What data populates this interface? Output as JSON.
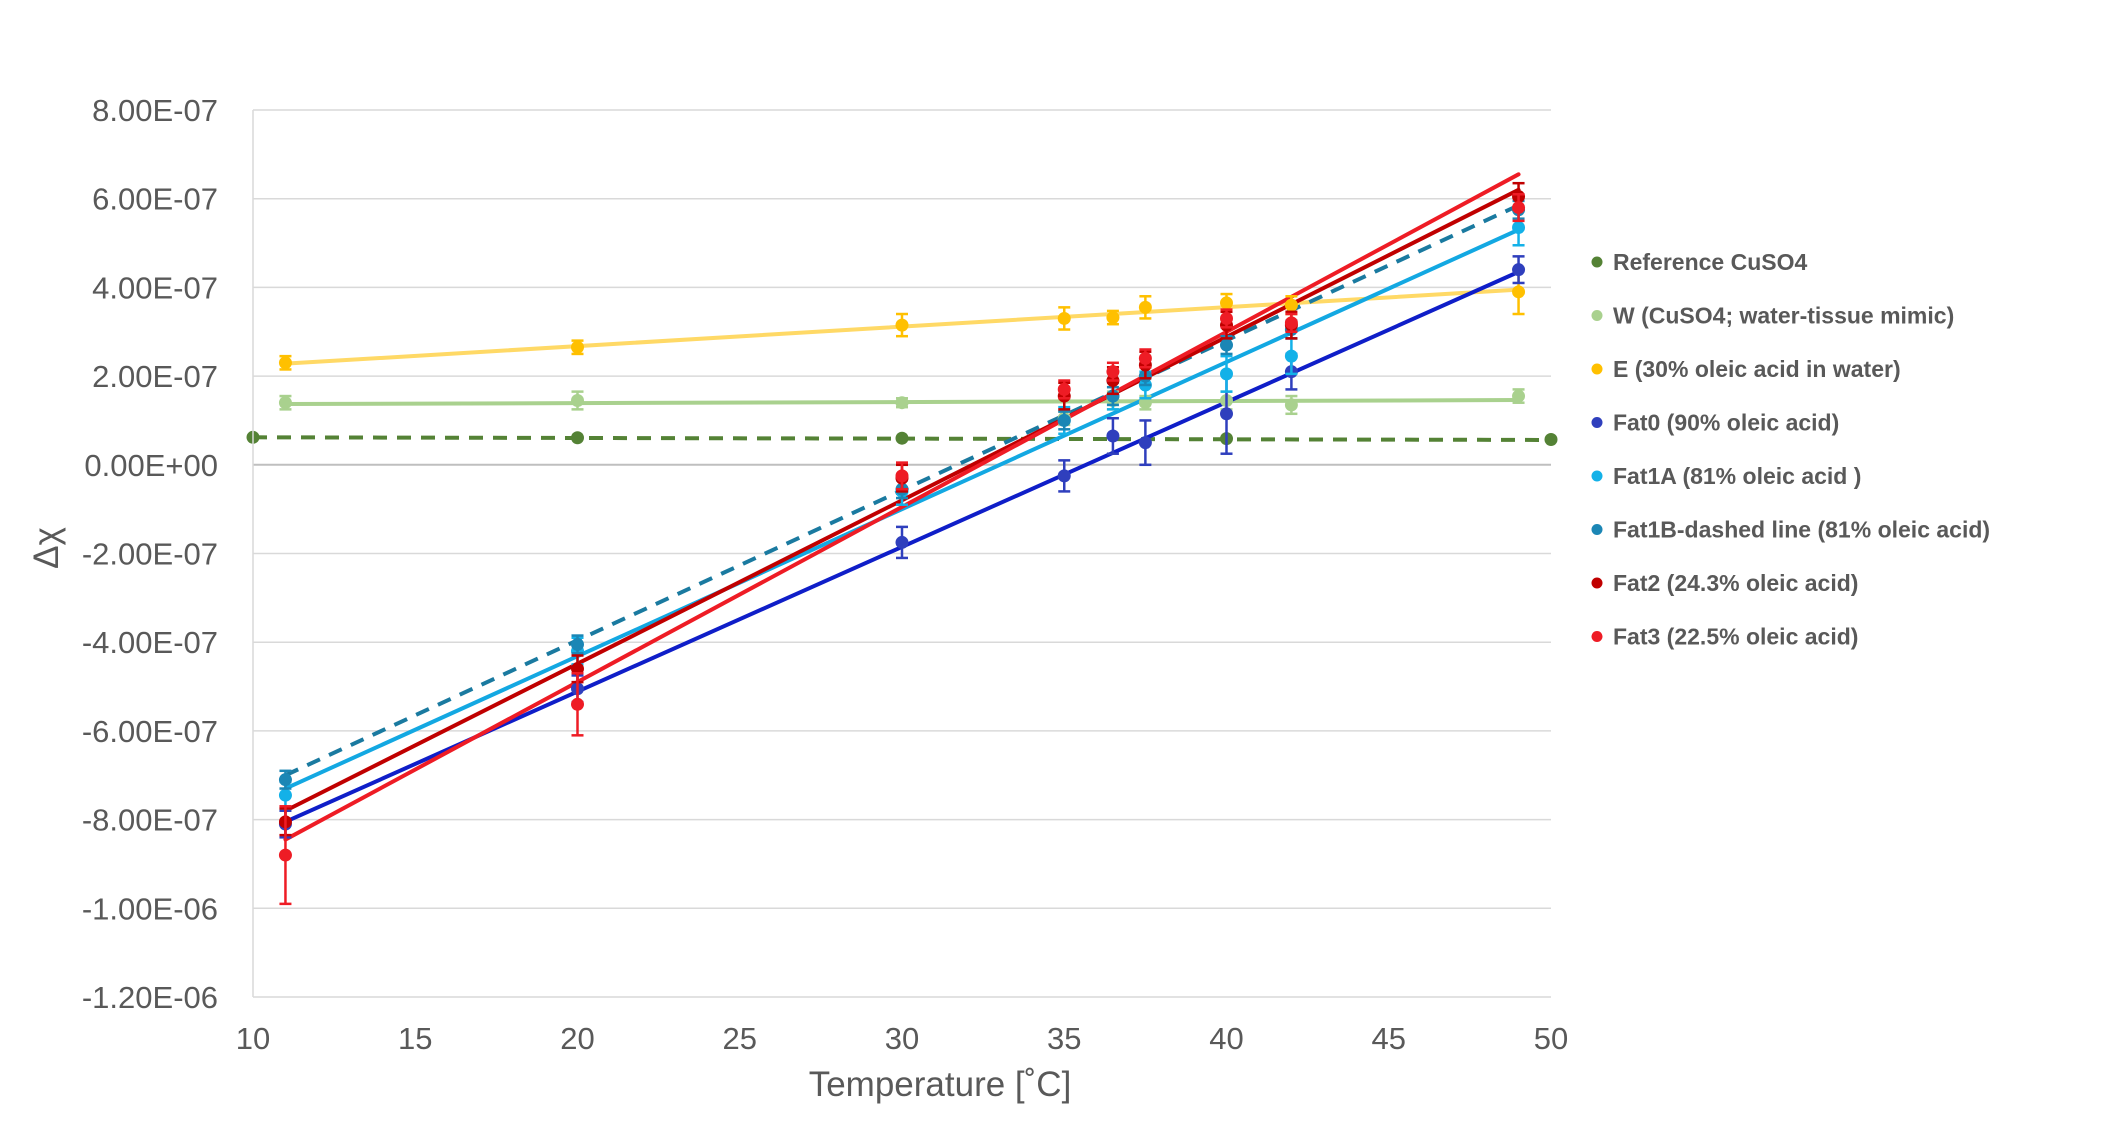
{
  "chart_data": {
    "type": "scatter",
    "title": "",
    "xlabel": "Temperature  [˚C]",
    "ylabel": "Δχ",
    "xlim": [
      10,
      50
    ],
    "ylim": [
      -1.2e-06,
      8e-07
    ],
    "x_ticks": [
      "10",
      "15",
      "20",
      "25",
      "30",
      "35",
      "40",
      "45",
      "50"
    ],
    "y_ticks": [
      "8.00E-07",
      "6.00E-07",
      "4.00E-07",
      "2.00E-07",
      "0.00E+00",
      "-2.00E-07",
      "-4.00E-07",
      "-6.00E-07",
      "-8.00E-07",
      "-1.00E-06",
      "-1.20E-06"
    ],
    "grid": "horizontal",
    "legend_position": "right",
    "series": [
      {
        "name": "Reference CuSO4",
        "color": "#548235",
        "marker_color": "#548235",
        "line_style": "dashed",
        "trendline": [
          [
            10,
            6.2e-08
          ],
          [
            50,
            5.6e-08
          ]
        ],
        "points": [
          [
            10,
            6.2e-08,
            0
          ],
          [
            20,
            6.1e-08,
            0
          ],
          [
            30,
            6e-08,
            0
          ],
          [
            40,
            5.9e-08,
            0
          ],
          [
            50,
            5.7e-08,
            0
          ]
        ]
      },
      {
        "name": "W (CuSO4; water-tissue mimic)",
        "color": "#a9d18e",
        "marker_color": "#a9d18e",
        "line_style": "solid",
        "trendline": [
          [
            11,
            1.37e-07
          ],
          [
            49,
            1.46e-07
          ]
        ],
        "points": [
          [
            11,
            1.4e-07,
            1.5e-08
          ],
          [
            20,
            1.45e-07,
            2e-08
          ],
          [
            30,
            1.4e-07,
            1e-08
          ],
          [
            35,
            1.05e-07,
            1.5e-08
          ],
          [
            36.5,
            1.45e-07,
            2e-08
          ],
          [
            37.5,
            1.4e-07,
            1.5e-08
          ],
          [
            40,
            1.45e-07,
            2e-08
          ],
          [
            42,
            1.35e-07,
            2e-08
          ],
          [
            49,
            1.55e-07,
            1.5e-08
          ]
        ]
      },
      {
        "name": "E (30% oleic acid in water)",
        "color": "#ffd966",
        "marker_color": "#ffc000",
        "line_style": "solid",
        "trendline": [
          [
            11,
            2.28e-07
          ],
          [
            49,
            3.95e-07
          ]
        ],
        "points": [
          [
            11,
            2.3e-07,
            1.5e-08
          ],
          [
            20,
            2.65e-07,
            1.5e-08
          ],
          [
            30,
            3.15e-07,
            2.5e-08
          ],
          [
            35,
            3.3e-07,
            2.5e-08
          ],
          [
            36.5,
            3.32e-07,
            1.5e-08
          ],
          [
            37.5,
            3.55e-07,
            2.5e-08
          ],
          [
            40,
            3.65e-07,
            2e-08
          ],
          [
            42,
            3.6e-07,
            2e-08
          ],
          [
            49,
            3.9e-07,
            5e-08
          ]
        ]
      },
      {
        "name": "Fat0 (90% oleic acid)",
        "color": "#0f1ec8",
        "marker_color": "#2f3fbd",
        "line_style": "solid",
        "trendline": [
          [
            11,
            -8.05e-07
          ],
          [
            49,
            4.35e-07
          ]
        ],
        "points": [
          [
            11,
            -8.1e-07,
            3e-08
          ],
          [
            20,
            -5.05e-07,
            3e-08
          ],
          [
            30,
            -1.75e-07,
            3.5e-08
          ],
          [
            35,
            -2.5e-08,
            3.5e-08
          ],
          [
            36.5,
            6.5e-08,
            4e-08
          ],
          [
            37.5,
            5e-08,
            5e-08
          ],
          [
            40,
            1.15e-07,
            9e-08
          ],
          [
            42,
            2.1e-07,
            4e-08
          ],
          [
            49,
            4.4e-07,
            3e-08
          ]
        ]
      },
      {
        "name": "Fat1A (81% oleic acid )",
        "color": "#13a8e2",
        "marker_color": "#13b1e8",
        "line_style": "solid",
        "trendline": [
          [
            11,
            -7.3e-07
          ],
          [
            49,
            5.3e-07
          ]
        ],
        "points": [
          [
            11,
            -7.45e-07,
            3e-08
          ],
          [
            20,
            -4.2e-07,
            3e-08
          ],
          [
            30,
            -6e-08,
            3e-08
          ],
          [
            35,
            1e-07,
            3e-08
          ],
          [
            36.5,
            1.55e-07,
            3e-08
          ],
          [
            37.5,
            1.8e-07,
            3e-08
          ],
          [
            40,
            2.05e-07,
            4e-08
          ],
          [
            42,
            2.45e-07,
            4e-08
          ],
          [
            49,
            5.35e-07,
            4e-08
          ]
        ]
      },
      {
        "name": "Fat1B-dashed line (81% oleic acid)",
        "color": "#1a7aa0",
        "marker_color": "#1b86b5",
        "line_style": "dashed",
        "trendline": [
          [
            11,
            -7e-07
          ],
          [
            49,
            5.85e-07
          ]
        ],
        "points": [
          [
            11,
            -7.1e-07,
            2e-08
          ],
          [
            20,
            -4.05e-07,
            2e-08
          ],
          [
            30,
            -5.5e-08,
            2e-08
          ],
          [
            35,
            1e-07,
            2e-08
          ],
          [
            36.5,
            1.55e-07,
            2e-08
          ],
          [
            37.5,
            2e-07,
            2e-08
          ],
          [
            40,
            2.7e-07,
            2e-08
          ],
          [
            42,
            3.05e-07,
            2e-08
          ],
          [
            49,
            5.75e-07,
            2e-08
          ]
        ]
      },
      {
        "name": "Fat2 (24.3% oleic acid)",
        "color": "#c00000",
        "marker_color": "#c00000",
        "line_style": "solid",
        "trendline": [
          [
            11,
            -7.8e-07
          ],
          [
            49,
            6.2e-07
          ]
        ],
        "points": [
          [
            11,
            -8.05e-07,
            3e-08
          ],
          [
            20,
            -4.6e-07,
            3e-08
          ],
          [
            30,
            -3e-08,
            3e-08
          ],
          [
            35,
            1.55e-07,
            3e-08
          ],
          [
            36.5,
            1.9e-07,
            3e-08
          ],
          [
            37.5,
            2.25e-07,
            3e-08
          ],
          [
            40,
            3.15e-07,
            3e-08
          ],
          [
            42,
            3.15e-07,
            3e-08
          ],
          [
            49,
            6.05e-07,
            3e-08
          ]
        ]
      },
      {
        "name": "Fat3 (22.5% oleic acid)",
        "color": "#ee1c25",
        "marker_color": "#ee1c25",
        "line_style": "solid",
        "trendline": [
          [
            11,
            -8.45e-07
          ],
          [
            49,
            6.55e-07
          ]
        ],
        "points": [
          [
            11,
            -8.8e-07,
            1.1e-07
          ],
          [
            20,
            -5.4e-07,
            7e-08
          ],
          [
            30,
            -2.5e-08,
            3e-08
          ],
          [
            35,
            1.7e-07,
            2e-08
          ],
          [
            36.5,
            2.1e-07,
            2e-08
          ],
          [
            37.5,
            2.4e-07,
            2e-08
          ],
          [
            40,
            3.3e-07,
            2e-08
          ],
          [
            42,
            3.2e-07,
            2e-08
          ],
          [
            49,
            5.8e-07,
            3e-08
          ]
        ]
      }
    ]
  }
}
